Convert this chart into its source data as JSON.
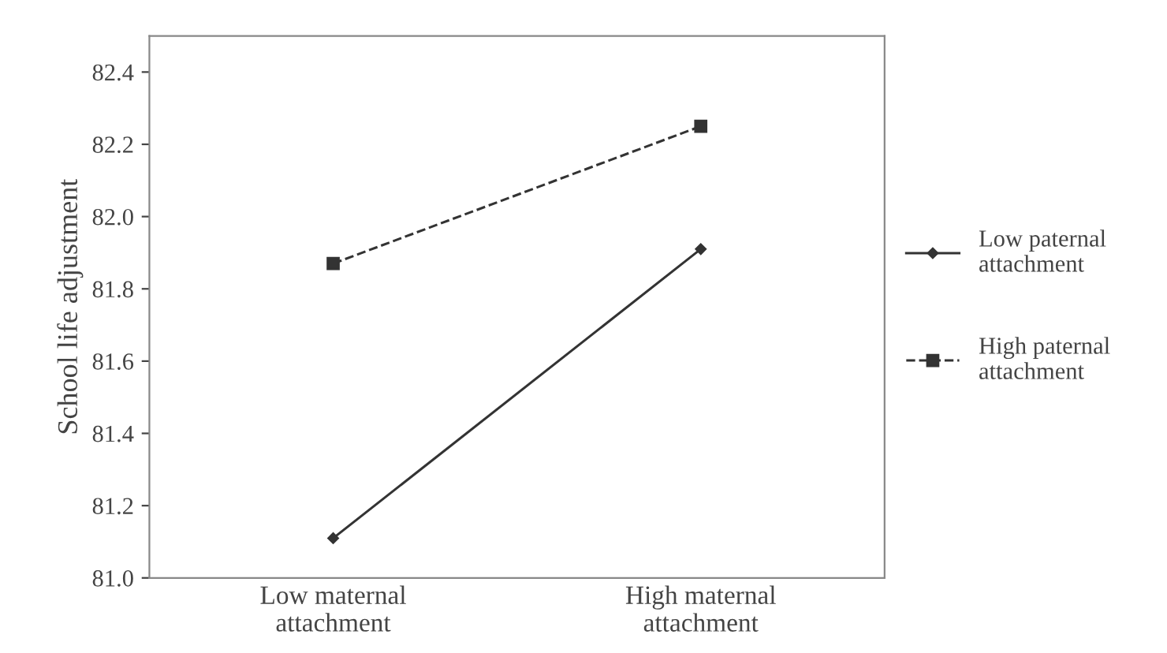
{
  "chart_data": {
    "type": "line",
    "ylabel": "School life adjustment",
    "categories": [
      "Low maternal\nattachment",
      "High maternal\nattachment"
    ],
    "series": [
      {
        "name": "Low paternal\nattachment",
        "color": "#333333",
        "values": [
          81.11,
          81.91
        ],
        "marker": "diamond",
        "line_style": "solid"
      },
      {
        "name": "High paternal\nattachment",
        "color": "#333333",
        "values": [
          81.87,
          82.25
        ],
        "marker": "square",
        "line_style": "dashed"
      }
    ],
    "ylim": [
      81.0,
      82.5
    ],
    "yticks": [
      {
        "value": 81.0,
        "label": "81.0"
      },
      {
        "value": 81.2,
        "label": "81.2"
      },
      {
        "value": 81.4,
        "label": "81.4"
      },
      {
        "value": 81.6,
        "label": "81.6"
      },
      {
        "value": 81.8,
        "label": "81.8"
      },
      {
        "value": 82.0,
        "label": "82.0"
      },
      {
        "value": 82.2,
        "label": "82.2"
      },
      {
        "value": 82.4,
        "label": "82.4"
      }
    ],
    "grid": false,
    "legend": "right"
  }
}
